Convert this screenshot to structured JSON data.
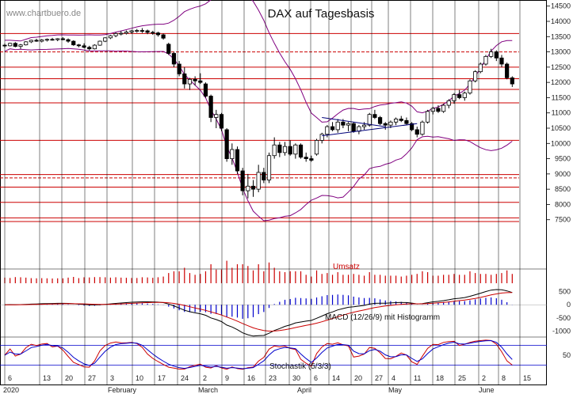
{
  "watermark": "www.chartbuero.de",
  "chart_data": {
    "type": "candlestick",
    "title": "DAX auf Tagesbasis",
    "price_axis": {
      "ylim": [
        7000,
        14700
      ],
      "ticks": [
        7500,
        8000,
        8500,
        9000,
        9500,
        10000,
        10500,
        11000,
        11500,
        12000,
        12500,
        13000,
        13500,
        14000,
        14500
      ],
      "tick_labels": [
        "7500",
        "8000",
        "8500",
        "9000",
        "9500",
        "10000",
        "10500",
        "11000",
        "11500",
        "12000",
        "12500",
        "13000",
        "13500",
        "14000",
        "14500"
      ]
    },
    "x_axis": {
      "day_labels": [
        "6",
        "13",
        "20",
        "27",
        "3",
        "10",
        "17",
        "24",
        "2",
        "9",
        "16",
        "23",
        "30",
        "6",
        "14",
        "20",
        "27",
        "4",
        "11",
        "18",
        "25",
        "2",
        "8",
        "15"
      ],
      "month_labels": [
        "2020",
        "February",
        "March",
        "April",
        "May",
        "June"
      ]
    },
    "horizontal_levels": [
      {
        "value": 13600,
        "style": "solid"
      },
      {
        "value": 13000,
        "style": "dashed"
      },
      {
        "value": 12500,
        "style": "solid"
      },
      {
        "value": 12120,
        "style": "solid"
      },
      {
        "value": 11770,
        "style": "solid"
      },
      {
        "value": 11330,
        "style": "solid"
      },
      {
        "value": 10100,
        "style": "solid"
      },
      {
        "value": 8980,
        "style": "solid"
      },
      {
        "value": 8870,
        "style": "dashed"
      },
      {
        "value": 8570,
        "style": "solid"
      },
      {
        "value": 8070,
        "style": "solid"
      },
      {
        "value": 7560,
        "style": "solid"
      },
      {
        "value": 7440,
        "style": "solid"
      }
    ],
    "dotted_level": 13000,
    "candles": [
      [
        13220,
        13270,
        13130,
        13200
      ],
      [
        13200,
        13300,
        13180,
        13280
      ],
      [
        13280,
        13320,
        13150,
        13180
      ],
      [
        13180,
        13260,
        13100,
        13230
      ],
      [
        13230,
        13350,
        13210,
        13330
      ],
      [
        13330,
        13400,
        13290,
        13380
      ],
      [
        13380,
        13430,
        13330,
        13350
      ],
      [
        13350,
        13420,
        13310,
        13390
      ],
      [
        13390,
        13440,
        13340,
        13410
      ],
      [
        13410,
        13460,
        13370,
        13400
      ],
      [
        13400,
        13450,
        13350,
        13430
      ],
      [
        13430,
        13480,
        13380,
        13400
      ],
      [
        13400,
        13440,
        13300,
        13350
      ],
      [
        13350,
        13380,
        13200,
        13230
      ],
      [
        13230,
        13260,
        13150,
        13200
      ],
      [
        13200,
        13280,
        13120,
        13150
      ],
      [
        13150,
        13200,
        13050,
        13100
      ],
      [
        13100,
        13250,
        13080,
        13220
      ],
      [
        13220,
        13370,
        13200,
        13350
      ],
      [
        13350,
        13480,
        13320,
        13460
      ],
      [
        13460,
        13560,
        13420,
        13530
      ],
      [
        13530,
        13640,
        13480,
        13600
      ],
      [
        13600,
        13680,
        13540,
        13610
      ],
      [
        13610,
        13700,
        13570,
        13650
      ],
      [
        13650,
        13720,
        13600,
        13690
      ],
      [
        13690,
        13750,
        13630,
        13700
      ],
      [
        13700,
        13780,
        13620,
        13690
      ],
      [
        13690,
        13730,
        13580,
        13640
      ],
      [
        13640,
        13690,
        13560,
        13620
      ],
      [
        13620,
        13660,
        13500,
        13560
      ],
      [
        13560,
        13600,
        13400,
        13450
      ],
      [
        13250,
        13300,
        12900,
        12950
      ],
      [
        12950,
        13000,
        12500,
        12600
      ],
      [
        12600,
        12700,
        12200,
        12280
      ],
      [
        12280,
        12500,
        11800,
        11950
      ],
      [
        11950,
        12150,
        11750,
        12100
      ],
      [
        12100,
        12200,
        11900,
        12050
      ],
      [
        12050,
        12300,
        11950,
        12000
      ],
      [
        11950,
        12000,
        11500,
        11550
      ],
      [
        11550,
        11600,
        10700,
        10850
      ],
      [
        10850,
        11100,
        10500,
        10950
      ],
      [
        10950,
        11000,
        10400,
        10500
      ],
      [
        10450,
        10500,
        9400,
        9500
      ],
      [
        9500,
        10000,
        9300,
        9800
      ],
      [
        9800,
        9900,
        9000,
        9100
      ],
      [
        9100,
        9200,
        8300,
        8450
      ],
      [
        8450,
        9000,
        8200,
        8600
      ],
      [
        8600,
        8800,
        8250,
        8500
      ],
      [
        8500,
        9300,
        8400,
        9050
      ],
      [
        9050,
        9200,
        8700,
        8800
      ],
      [
        8800,
        9700,
        8700,
        9600
      ],
      [
        9600,
        10200,
        9500,
        9950
      ],
      [
        9950,
        10050,
        9550,
        9700
      ],
      [
        9700,
        10050,
        9600,
        9900
      ],
      [
        9900,
        10100,
        9600,
        9650
      ],
      [
        9650,
        10000,
        9500,
        9950
      ],
      [
        9950,
        10000,
        9500,
        9550
      ],
      [
        9550,
        9700,
        9400,
        9500
      ],
      [
        9500,
        9600,
        9400,
        9450
      ],
      [
        9650,
        10150,
        9600,
        10100
      ],
      [
        10100,
        10350,
        10000,
        10300
      ],
      [
        10300,
        10600,
        10200,
        10550
      ],
      [
        10550,
        10700,
        10400,
        10450
      ],
      [
        10450,
        10800,
        10350,
        10700
      ],
      [
        10700,
        10800,
        10500,
        10600
      ],
      [
        10600,
        10700,
        10400,
        10650
      ],
      [
        10650,
        10700,
        10350,
        10400
      ],
      [
        10400,
        10600,
        10300,
        10550
      ],
      [
        10550,
        10700,
        10450,
        10600
      ],
      [
        10600,
        11000,
        10550,
        10950
      ],
      [
        10950,
        11100,
        10800,
        10850
      ],
      [
        10850,
        10900,
        10600,
        10650
      ],
      [
        10650,
        10700,
        10450,
        10600
      ],
      [
        10600,
        10750,
        10500,
        10700
      ],
      [
        10700,
        10850,
        10600,
        10800
      ],
      [
        10800,
        10900,
        10700,
        10750
      ],
      [
        10750,
        10850,
        10600,
        10650
      ],
      [
        10650,
        10700,
        10400,
        10450
      ],
      [
        10450,
        10550,
        10200,
        10300
      ],
      [
        10300,
        10750,
        10250,
        10700
      ],
      [
        10700,
        11100,
        10650,
        11050
      ],
      [
        11050,
        11200,
        10950,
        11150
      ],
      [
        11150,
        11250,
        11000,
        11050
      ],
      [
        11050,
        11300,
        11000,
        11250
      ],
      [
        11250,
        11450,
        11150,
        11400
      ],
      [
        11400,
        11650,
        11300,
        11600
      ],
      [
        11600,
        11750,
        11450,
        11500
      ],
      [
        11500,
        11700,
        11400,
        11650
      ],
      [
        11650,
        12100,
        11600,
        12050
      ],
      [
        12050,
        12400,
        12000,
        12350
      ],
      [
        12350,
        12650,
        12300,
        12600
      ],
      [
        12600,
        12900,
        12550,
        12850
      ],
      [
        12850,
        13100,
        12800,
        13000
      ],
      [
        13000,
        13050,
        12700,
        12800
      ],
      [
        12800,
        12900,
        12500,
        12600
      ],
      [
        12600,
        12650,
        12100,
        12150
      ],
      [
        12150,
        12200,
        11850,
        11950
      ]
    ],
    "indicators": {
      "volume_label": "Umsatz",
      "macd_label": "MACD (12/26/9) mit Histogramm",
      "macd_ticks": [
        500,
        0,
        -500,
        -1000
      ],
      "stochastic_label": "Stochastik (5/3/3)",
      "stochastic_ticks": [
        50
      ]
    },
    "colors": {
      "upper_band": "#800080",
      "lower_band": "#800080",
      "levels": "#cc0000",
      "macd_signal": "#cc0000",
      "macd_line": "#000000",
      "histogram": "#0000cc",
      "volume": "#cc0000",
      "stoch_k": "#cc0000",
      "stoch_d": "#0000cc"
    }
  }
}
